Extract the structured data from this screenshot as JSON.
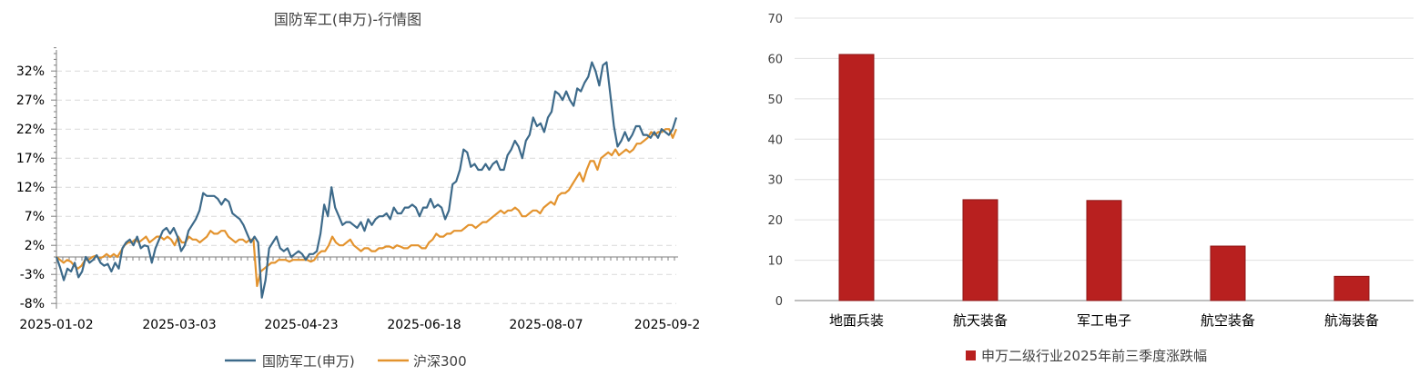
{
  "chart_data": [
    {
      "type": "line",
      "title": "国防军工(申万)-行情图",
      "xlabel": "",
      "ylabel": "",
      "x_tick_labels": [
        "2025-01-02",
        "2025-03-03",
        "2025-04-23",
        "2025-06-18",
        "2025-08-07",
        "2025-09-2"
      ],
      "y_tick_labels": [
        "-8%",
        "-3%",
        "2%",
        "7%",
        "12%",
        "17%",
        "22%",
        "27%",
        "32%"
      ],
      "ylim": [
        -8,
        36
      ],
      "y_unit": "%",
      "grid": true,
      "legend_position": "bottom",
      "colors": {
        "defense": "#3D6A8A",
        "hs300": "#E3932E"
      },
      "series": [
        {
          "name": "国防军工(申万)",
          "values": [
            0.0,
            -1.8,
            -4.0,
            -2.0,
            -2.5,
            -1.0,
            -3.5,
            -2.5,
            0.0,
            -1.0,
            -0.5,
            0.3,
            -1.0,
            -1.5,
            -1.2,
            -2.5,
            -1.0,
            -2.0,
            1.5,
            2.5,
            3.0,
            2.0,
            3.5,
            1.5,
            2.0,
            1.8,
            -1.0,
            1.5,
            3.0,
            4.5,
            5.0,
            4.0,
            5.0,
            3.5,
            1.0,
            2.0,
            4.5,
            5.5,
            6.5,
            8.0,
            11.0,
            10.5,
            10.5,
            10.5,
            10.0,
            9.0,
            10.0,
            9.5,
            7.5,
            7.0,
            6.5,
            5.5,
            4.0,
            2.5,
            3.5,
            2.5,
            -7.0,
            -4.0,
            1.5,
            2.5,
            3.5,
            1.5,
            1.0,
            1.5,
            0.0,
            0.5,
            1.0,
            0.5,
            -0.5,
            0.5,
            0.5,
            1.0,
            4.0,
            9.0,
            7.0,
            12.0,
            8.5,
            7.0,
            5.5,
            6.0,
            6.0,
            5.5,
            5.0,
            6.0,
            4.5,
            6.5,
            5.5,
            6.5,
            7.0,
            7.0,
            7.5,
            6.5,
            8.5,
            7.5,
            7.5,
            8.5,
            8.5,
            9.0,
            8.5,
            7.0,
            8.5,
            8.5,
            10.0,
            8.5,
            9.0,
            8.5,
            6.5,
            8.0,
            12.5,
            13.0,
            15.0,
            18.5,
            18.0,
            15.5,
            16.0,
            15.0,
            15.0,
            16.0,
            15.0,
            16.0,
            16.5,
            15.0,
            15.0,
            17.5,
            18.5,
            20.0,
            19.0,
            17.0,
            20.0,
            21.0,
            24.0,
            22.5,
            23.0,
            21.5,
            24.0,
            25.0,
            28.5,
            28.0,
            27.0,
            28.5,
            27.0,
            26.0,
            29.0,
            28.5,
            30.0,
            31.0,
            33.5,
            32.0,
            29.5,
            33.0,
            33.5,
            28.0,
            22.5,
            19.0,
            20.0,
            21.5,
            20.0,
            21.0,
            22.5,
            22.5,
            21.0,
            21.0,
            20.5,
            21.5,
            20.5,
            22.0,
            21.5,
            21.0,
            22.0,
            24.0
          ]
        },
        {
          "name": "沪深300",
          "values": [
            0.0,
            -0.5,
            -1.0,
            -0.5,
            -0.8,
            -1.5,
            -2.0,
            -1.5,
            -0.5,
            -0.5,
            0.0,
            0.2,
            -0.2,
            0.0,
            0.5,
            0.0,
            0.5,
            0.0,
            1.0,
            2.0,
            2.5,
            2.5,
            3.0,
            2.5,
            3.0,
            3.5,
            2.5,
            3.0,
            3.5,
            3.5,
            3.0,
            3.5,
            3.0,
            2.0,
            3.5,
            2.5,
            2.5,
            3.5,
            3.0,
            3.0,
            2.5,
            3.0,
            3.5,
            4.5,
            4.0,
            4.0,
            4.5,
            4.5,
            3.5,
            3.0,
            2.5,
            3.0,
            3.0,
            2.5,
            3.0,
            3.0,
            -5.0,
            -2.5,
            -2.0,
            -1.5,
            -1.0,
            -1.0,
            -0.5,
            -0.5,
            -0.5,
            -0.8,
            -0.5,
            -0.5,
            -0.5,
            -0.5,
            -0.5,
            -0.8,
            -0.5,
            0.5,
            1.0,
            1.0,
            2.0,
            3.5,
            2.5,
            2.0,
            2.0,
            2.5,
            3.0,
            2.0,
            1.5,
            1.0,
            1.5,
            1.5,
            1.0,
            1.0,
            1.5,
            1.5,
            1.8,
            1.8,
            1.5,
            2.0,
            1.8,
            1.5,
            1.5,
            2.0,
            2.0,
            2.0,
            1.5,
            1.5,
            2.5,
            3.0,
            4.0,
            3.5,
            3.5,
            4.0,
            4.0,
            4.5,
            4.5,
            4.5,
            5.0,
            5.5,
            5.5,
            5.0,
            5.5,
            6.0,
            6.0,
            6.5,
            7.0,
            7.5,
            8.0,
            7.5,
            8.0,
            8.0,
            8.5,
            8.0,
            7.0,
            7.0,
            7.5,
            8.0,
            8.0,
            7.5,
            8.5,
            9.0,
            9.5,
            9.0,
            10.5,
            11.0,
            11.0,
            11.5,
            12.5,
            13.5,
            14.5,
            13.0,
            15.0,
            16.5,
            16.5,
            15.0,
            17.0,
            17.5,
            18.0,
            17.5,
            18.5,
            17.5,
            18.0,
            18.5,
            18.0,
            18.5,
            19.5,
            19.5,
            20.0,
            20.5,
            21.5,
            21.0,
            21.5,
            21.5,
            22.0,
            22.0,
            20.5,
            22.0
          ]
        }
      ]
    },
    {
      "type": "bar",
      "title": "",
      "xlabel": "",
      "ylabel": "",
      "categories": [
        "地面兵装",
        "航天装备",
        "军工电子",
        "航空装备",
        "航海装备"
      ],
      "series": [
        {
          "name": "申万二级行业2025年前三季度涨跌幅",
          "values": [
            61.0,
            25.0,
            24.8,
            13.5,
            6.0
          ]
        }
      ],
      "y_tick_labels": [
        "0",
        "10",
        "20",
        "30",
        "40",
        "50",
        "60",
        "70"
      ],
      "ylim": [
        0,
        70
      ],
      "grid": true,
      "legend_position": "bottom",
      "colors": {
        "bar": "#B8201F",
        "bar_edge": "#8E1515"
      }
    }
  ]
}
